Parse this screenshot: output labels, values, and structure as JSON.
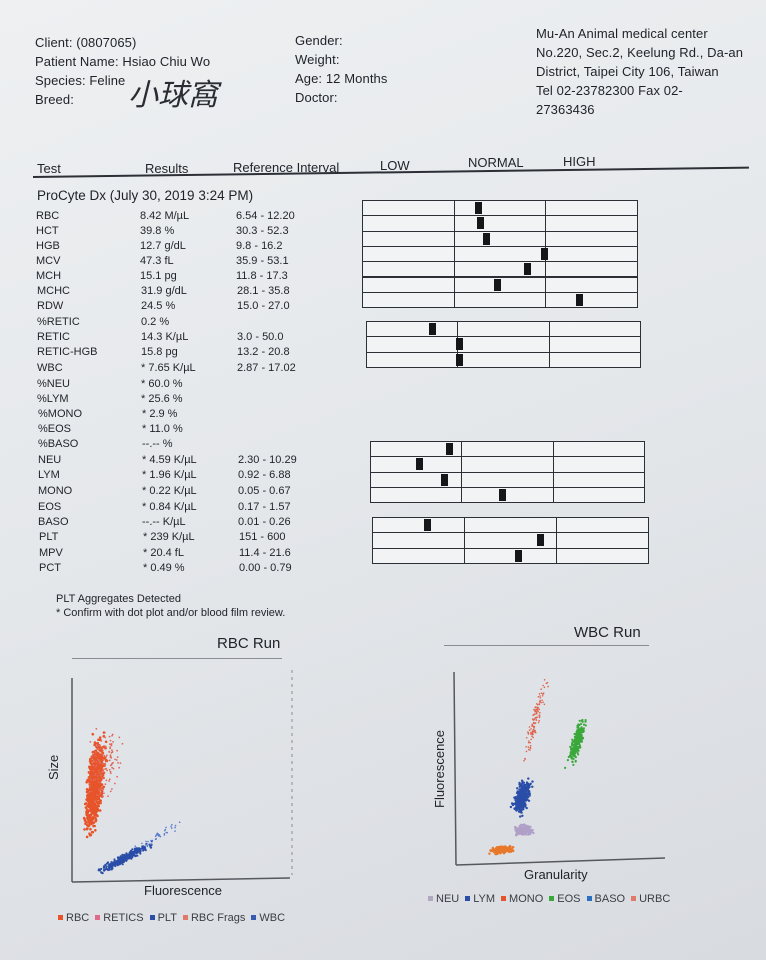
{
  "patient": {
    "client": "Client: (0807065)",
    "patient_name": "Patient Name: Hsiao Chiu Wo",
    "species": "Species: Feline",
    "breed": "Breed:",
    "gender": "Gender:",
    "weight": "Weight:",
    "age": "Age: 12 Months",
    "doctor": "Doctor:",
    "signature": "小球窩"
  },
  "clinic": {
    "line1": "Mu-An Animal medical center",
    "line2": "No.220, Sec.2, Keelung Rd., Da-an",
    "line3": "District, Taipei City 106, Taiwan",
    "line4": "Tel 02-23782300  Fax 02-",
    "line5": "27363436"
  },
  "columns": {
    "test": "Test",
    "results": "Results",
    "reference": "Reference Interval",
    "low": "LOW",
    "normal": "NORMAL",
    "high": "HIGH"
  },
  "run_title": "ProCyte Dx (July 30, 2019 3:24 PM)",
  "results": [
    {
      "test": "RBC",
      "result": "8.42 M/µL",
      "ref": "6.54 - 12.20",
      "gauge": 0.42
    },
    {
      "test": "HCT",
      "result": "39.8 %",
      "ref": "30.3 - 52.3",
      "gauge": 0.43
    },
    {
      "test": "HGB",
      "result": "12.7 g/dL",
      "ref": "9.8 - 16.2",
      "gauge": 0.45
    },
    {
      "test": "MCV",
      "result": "47.3 fL",
      "ref": "35.9 - 53.1",
      "gauge": 0.66
    },
    {
      "test": "MCH",
      "result": "15.1 pg",
      "ref": "11.8 - 17.3",
      "gauge": 0.6
    },
    {
      "test": "MCHC",
      "result": "31.9 g/dL",
      "ref": "28.1 - 35.8",
      "gauge": 0.49
    },
    {
      "test": "RDW",
      "result": "24.5 %",
      "ref": "15.0 - 27.0",
      "gauge": 0.79
    },
    {
      "test": "%RETIC",
      "result": "0.2 %",
      "ref": "",
      "gauge": null
    },
    {
      "test": "RETIC",
      "result": "14.3 K/µL",
      "ref": "3.0 - 50.0",
      "gauge": 0.24
    },
    {
      "test": "RETIC-HGB",
      "result": "15.8 pg",
      "ref": "13.2 - 20.8",
      "gauge": 0.34
    },
    {
      "test": "WBC",
      "result": "* 7.65 K/µL",
      "ref": "2.87 - 17.02",
      "gauge": 0.34
    },
    {
      "test": "%NEU",
      "result": "* 60.0 %",
      "ref": "",
      "gauge": null
    },
    {
      "test": "%LYM",
      "result": "* 25.6 %",
      "ref": "",
      "gauge": null
    },
    {
      "test": "%MONO",
      "result": "* 2.9 %",
      "ref": "",
      "gauge": null
    },
    {
      "test": "%EOS",
      "result": "* 11.0 %",
      "ref": "",
      "gauge": null
    },
    {
      "test": "%BASO",
      "result": "--.-- %",
      "ref": "",
      "gauge": null
    },
    {
      "test": "NEU",
      "result": "* 4.59 K/µL",
      "ref": "2.30 - 10.29",
      "gauge": 0.29
    },
    {
      "test": "LYM",
      "result": "* 1.96 K/µL",
      "ref": "0.92 - 6.88",
      "gauge": 0.18
    },
    {
      "test": "MONO",
      "result": "* 0.22 K/µL",
      "ref": "0.05 - 0.67",
      "gauge": 0.27
    },
    {
      "test": "EOS",
      "result": "* 0.84 K/µL",
      "ref": "0.17 - 1.57",
      "gauge": 0.48
    },
    {
      "test": "BASO",
      "result": "--.-- K/µL",
      "ref": "0.01 - 0.26",
      "gauge": null
    },
    {
      "test": "PLT",
      "result": "* 239 K/µL",
      "ref": "151 - 600",
      "gauge": 0.2
    },
    {
      "test": "MPV",
      "result": "* 20.4 fL",
      "ref": "11.4 - 21.6",
      "gauge": 0.61
    },
    {
      "test": "PCT",
      "result": "* 0.49 %",
      "ref": "0.00 - 0.79",
      "gauge": 0.53
    }
  ],
  "notes": {
    "line1": "PLT Aggregates Detected",
    "line2": "* Confirm with dot plot and/or blood film review."
  },
  "rbc_run": {
    "title": "RBC Run",
    "ylabel": "Size",
    "xlabel": "Fluorescence",
    "legend": [
      {
        "label": "RBC",
        "color": "#e8542a"
      },
      {
        "label": "RETICS",
        "color": "#e06a8a"
      },
      {
        "label": "PLT",
        "color": "#2a4ea8"
      },
      {
        "label": "RBC Frags",
        "color": "#e07a6a"
      },
      {
        "label": "WBC",
        "color": "#3a5ab0"
      }
    ]
  },
  "wbc_run": {
    "title": "WBC Run",
    "ylabel": "Fluorescence",
    "xlabel": "Granularity",
    "legend": [
      {
        "label": "NEU",
        "color": "#b0a8c0"
      },
      {
        "label": "LYM",
        "color": "#2a4ea8"
      },
      {
        "label": "MONO",
        "color": "#e8542a"
      },
      {
        "label": "EOS",
        "color": "#3aa83a"
      },
      {
        "label": "BASO",
        "color": "#2a70c0"
      },
      {
        "label": "URBC",
        "color": "#e07a6a"
      }
    ]
  }
}
